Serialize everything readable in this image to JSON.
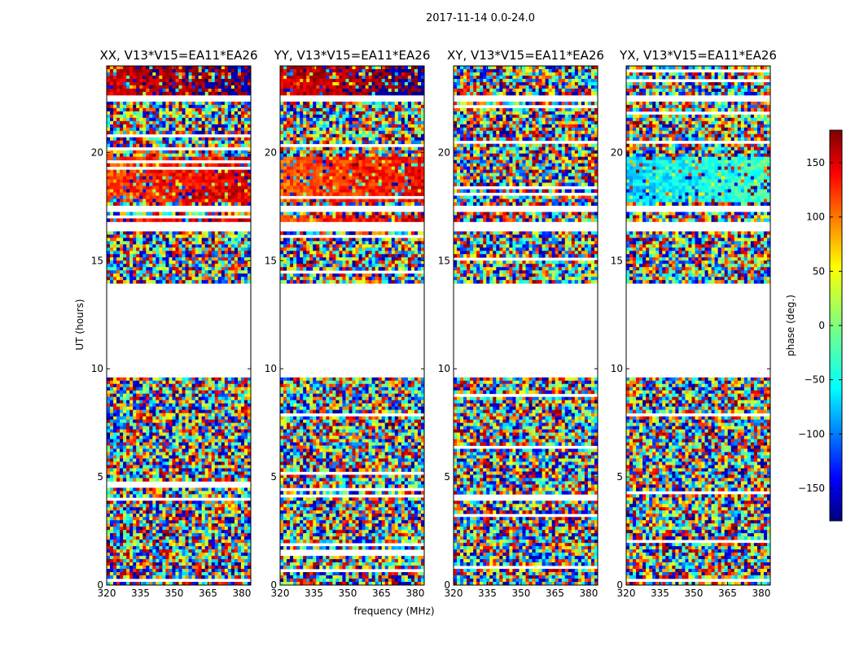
{
  "suptitle": "2017-11-14 0.0-24.0",
  "chart_data": {
    "type": "heatmap",
    "panels": [
      {
        "title": "XX, V13*V15=EA11*EA26",
        "polarization": "XX"
      },
      {
        "title": "YY, V13*V15=EA11*EA26",
        "polarization": "YY"
      },
      {
        "title": "XY, V13*V15=EA11*EA26",
        "polarization": "XY"
      },
      {
        "title": "YX, V13*V15=EA11*EA26",
        "polarization": "YX"
      }
    ],
    "xlabel": "frequency (MHz)",
    "ylabel": "UT (hours)",
    "xlim": [
      320,
      384
    ],
    "ylim": [
      0,
      24
    ],
    "xticks": [
      320,
      335,
      350,
      365,
      380
    ],
    "yticks": [
      0,
      5,
      10,
      15,
      20
    ],
    "colorbar": {
      "label": "phase (deg.)",
      "range": [
        -180,
        180
      ],
      "ticks": [
        150,
        100,
        50,
        0,
        -50,
        -100,
        -150
      ],
      "colormap": "jet"
    },
    "flagged_hour_ranges": [
      [
        9.6,
        13.9
      ],
      [
        22.4,
        22.7
      ],
      [
        17.2,
        17.6
      ],
      [
        16.3,
        16.8
      ]
    ],
    "coherent_phase_regions": {
      "XX": [
        {
          "hours": [
            17.7,
            19.8
          ],
          "phase_deg": 130
        },
        {
          "hours": [
            16.4,
            17.1
          ],
          "phase_deg": 140
        },
        {
          "hours": [
            22.7,
            24.0
          ],
          "phase_deg": 170
        }
      ],
      "YY": [
        {
          "hours": [
            17.7,
            19.8
          ],
          "phase_deg": 120
        },
        {
          "hours": [
            16.4,
            17.1
          ],
          "phase_deg": 130
        },
        {
          "hours": [
            22.7,
            24.0
          ],
          "phase_deg": 170
        }
      ],
      "XY": [],
      "YX": [
        {
          "hours": [
            17.7,
            19.8
          ],
          "phase_deg": -40
        }
      ]
    }
  }
}
